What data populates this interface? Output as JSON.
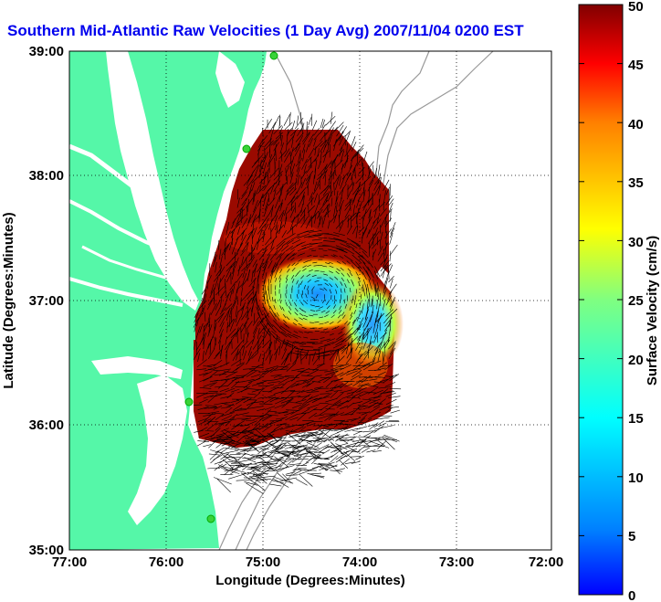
{
  "title": "Southern Mid-Atlantic Raw Velocities (1 Day Avg) 2007/11/04 0200 EST",
  "map": {
    "xlabel": "Longitude (Degrees:Minutes)",
    "ylabel": "Latitude (Degrees:Minutes)",
    "x_ticks": [
      "77:00",
      "76:00",
      "75:00",
      "74:00",
      "73:00",
      "72:00"
    ],
    "y_ticks": [
      "39:00",
      "38:00",
      "37:00",
      "36:00",
      "35:00"
    ],
    "land_color": "#55f7a8",
    "water_color": "#ffffff",
    "grid": "dotted"
  },
  "colorbar": {
    "label": "Surface Velocity (cm/s)",
    "ticks": [
      "50",
      "45",
      "40",
      "35",
      "30",
      "25",
      "20",
      "15",
      "10",
      "5",
      "0"
    ],
    "range": [
      0,
      50
    ],
    "colormap": "jet",
    "units": "cm/s"
  },
  "stations": [
    {
      "name": "station-north"
    },
    {
      "name": "station-delmarva"
    },
    {
      "name": "station-hatteras-north"
    },
    {
      "name": "station-hatteras-south"
    }
  ]
}
